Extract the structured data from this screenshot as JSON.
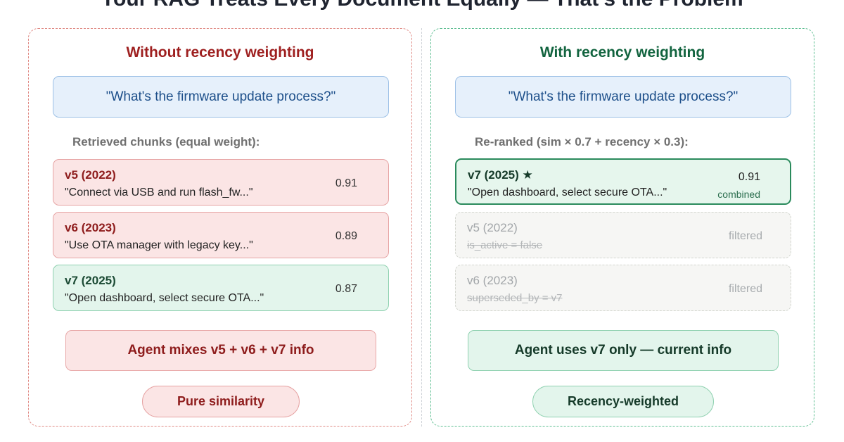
{
  "page_title": "Your RAG Treats Every Document Equally — That's the Problem",
  "left": {
    "title": "Without recency weighting",
    "query": "\"What's the firmware update process?\"",
    "section_label": "Retrieved chunks (equal weight):",
    "chunks": [
      {
        "version": "v5 (2022)",
        "text": "\"Connect via USB and run flash_fw...\"",
        "score": "0.91"
      },
      {
        "version": "v6 (2023)",
        "text": "\"Use OTA manager with legacy key...\"",
        "score": "0.89"
      },
      {
        "version": "v7 (2025)",
        "text": "\"Open dashboard, select secure OTA...\"",
        "score": "0.87"
      }
    ],
    "outcome": "Agent mixes v5 + v6 + v7 info",
    "pill": "Pure similarity"
  },
  "right": {
    "title": "With recency weighting",
    "query": "\"What's the firmware update process?\"",
    "section_label": "Re-ranked (sim × 0.7 + recency × 0.3):",
    "chunks": [
      {
        "version": "v7 (2025) ★",
        "text": "\"Open dashboard, select secure OTA...\"",
        "score": "0.91",
        "note": "combined"
      },
      {
        "version": "v5 (2022)",
        "text": "is_active = false",
        "score": "filtered"
      },
      {
        "version": "v6 (2023)",
        "text": "superseded_by = v7",
        "score": "filtered"
      }
    ],
    "outcome": "Agent uses v7 only — current info",
    "pill": "Recency-weighted"
  },
  "colors": {
    "left_accent": "#9e1f1f",
    "right_accent": "#12643f",
    "query_bg": "#e6f0fb",
    "bad_bg": "#fbe5e5",
    "good_bg": "#e3f5ec"
  }
}
